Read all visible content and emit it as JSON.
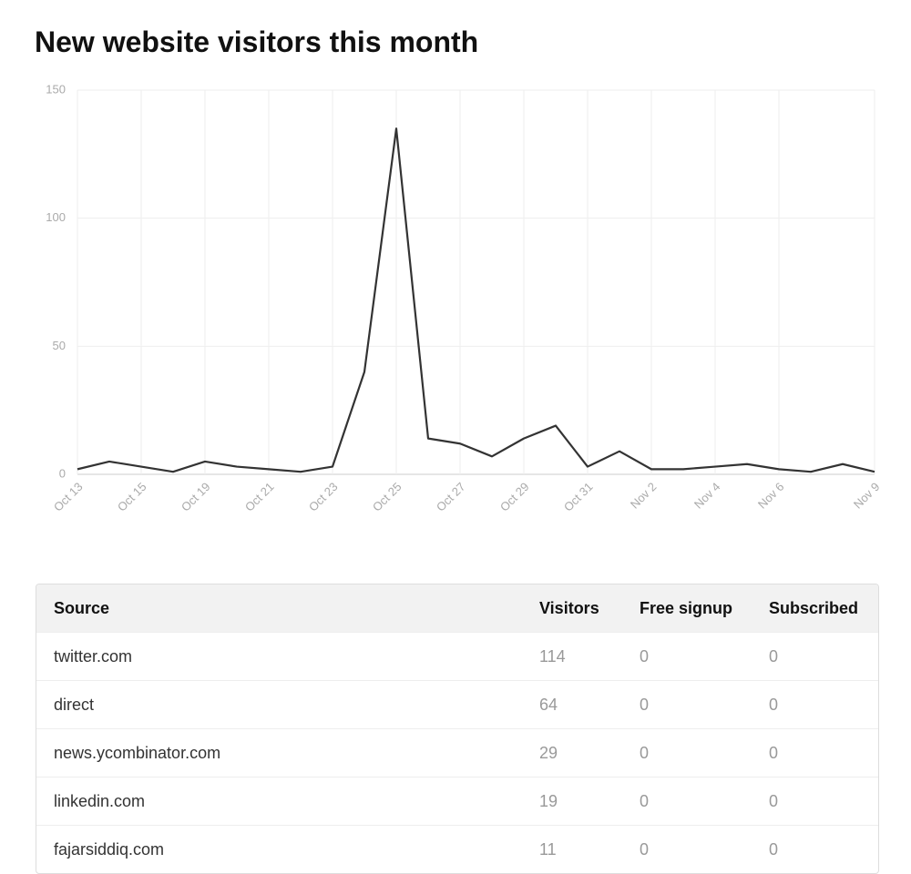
{
  "chart_data": {
    "type": "line",
    "title": "New website visitors this month",
    "categories": [
      "Oct 13",
      null,
      "Oct 15",
      null,
      "Oct 19",
      null,
      "Oct 21",
      null,
      "Oct 23",
      null,
      "Oct 25",
      null,
      "Oct 27",
      null,
      "Oct 29",
      null,
      "Oct 31",
      null,
      "Nov 2",
      null,
      "Nov 4",
      null,
      "Nov 6",
      null,
      null,
      "Nov 9"
    ],
    "values": [
      2,
      5,
      3,
      1,
      5,
      3,
      2,
      1,
      3,
      40,
      135,
      14,
      12,
      7,
      14,
      19,
      3,
      9,
      2,
      2,
      3,
      4,
      2,
      1,
      4,
      1
    ],
    "color": "#333333",
    "ylim": [
      0,
      150
    ],
    "yticks": [
      0,
      50,
      100,
      150
    ],
    "grid": true
  },
  "table": {
    "headers": [
      "Source",
      "Visitors",
      "Free signup",
      "Subscribed"
    ],
    "rows": [
      [
        "twitter.com",
        "114",
        "0",
        "0"
      ],
      [
        "direct",
        "64",
        "0",
        "0"
      ],
      [
        "news.ycombinator.com",
        "29",
        "0",
        "0"
      ],
      [
        "linkedin.com",
        "19",
        "0",
        "0"
      ],
      [
        "fajarsiddiq.com",
        "11",
        "0",
        "0"
      ]
    ]
  }
}
